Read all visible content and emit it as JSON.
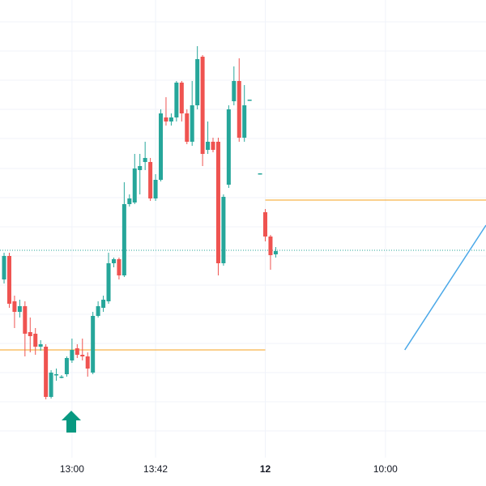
{
  "chart_data": {
    "type": "candlestick",
    "x": [
      0,
      1,
      2,
      3,
      4,
      5,
      6,
      7,
      8,
      9,
      10,
      11,
      12,
      13,
      14,
      15,
      16,
      17,
      18,
      19,
      20,
      21,
      22,
      23,
      24,
      25,
      26,
      27,
      28,
      29,
      30,
      31,
      32,
      33,
      34,
      35,
      36,
      37,
      38,
      39,
      40,
      41,
      42,
      43,
      44,
      45,
      46,
      47,
      49,
      50,
      51,
      52
    ],
    "open": [
      220,
      249,
      193,
      180,
      187,
      155,
      153,
      137,
      137,
      75,
      103,
      100,
      103,
      120,
      135,
      127,
      125,
      105,
      175,
      185,
      193,
      240,
      245,
      225,
      313,
      315,
      355,
      365,
      365,
      320,
      343,
      420,
      415,
      420,
      463,
      425,
      390,
      435,
      495,
      380,
      390,
      390,
      240,
      337,
      440,
      465,
      395,
      442,
      351,
      303,
      273,
      251
    ],
    "high": [
      253,
      253,
      200,
      195,
      193,
      173,
      160,
      145,
      140,
      108,
      110,
      102,
      125,
      147,
      140,
      147,
      130,
      180,
      193,
      200,
      253,
      247,
      247,
      340,
      325,
      375,
      375,
      390,
      370,
      350,
      430,
      445,
      425,
      465,
      465,
      430,
      465,
      508,
      497,
      415,
      395,
      395,
      325,
      435,
      483,
      493,
      460,
      442,
      351,
      307,
      275,
      260
    ],
    "low": [
      215,
      185,
      160,
      173,
      125,
      130,
      127,
      132,
      72,
      73,
      95,
      98,
      100,
      117,
      123,
      120,
      100,
      103,
      173,
      180,
      190,
      235,
      220,
      223,
      310,
      313,
      325,
      355,
      317,
      317,
      341,
      410,
      410,
      415,
      415,
      387,
      385,
      430,
      360,
      375,
      377,
      225,
      237,
      333,
      435,
      390,
      390,
      442,
      351,
      267,
      232,
      247
    ],
    "close": [
      249,
      190,
      180,
      187,
      153,
      150,
      137,
      140,
      75,
      105,
      103,
      100,
      123,
      133,
      127,
      125,
      110,
      175,
      187,
      195,
      240,
      245,
      225,
      313,
      320,
      357,
      360,
      370,
      320,
      343,
      425,
      415,
      420,
      463,
      425,
      390,
      435,
      492,
      375,
      390,
      380,
      240,
      322,
      430,
      465,
      395,
      435,
      442,
      351,
      273,
      250,
      255
    ],
    "up_color": "#26a69a",
    "down_color": "#ef5350",
    "xlim": [
      -0.78,
      92.25
    ],
    "ylim": [
      0,
      565
    ],
    "xticks": [
      {
        "value": 13,
        "label": "13:00"
      },
      {
        "value": 29,
        "label": "13:42"
      },
      {
        "value": 50,
        "label": "12"
      },
      {
        "value": 73,
        "label": "10:00"
      }
    ],
    "yticks": [
      33,
      69,
      105,
      141,
      177,
      213,
      249,
      285,
      321,
      357,
      394,
      430,
      466,
      502,
      538
    ],
    "grid": true,
    "levels": [
      {
        "value": 133,
        "color": "#f7a21b",
        "to": 50
      },
      {
        "value": 318,
        "color": "#f7a21b",
        "from": 50
      },
      {
        "value": 256,
        "color": "#26a69a",
        "dotted": true
      }
    ],
    "trendline": {
      "x": [
        76.7,
        92.25
      ],
      "y": [
        133,
        287
      ],
      "color": "#4aa8e8"
    }
  }
}
